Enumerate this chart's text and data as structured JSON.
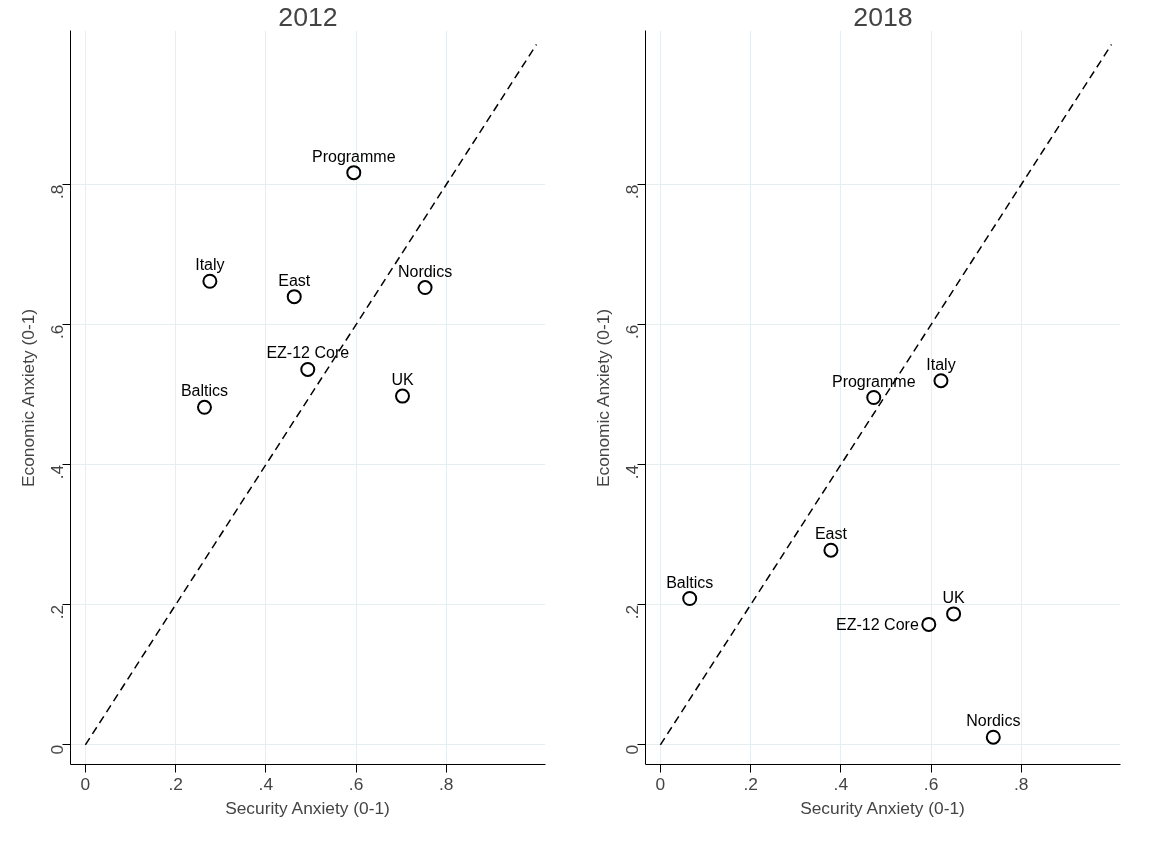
{
  "chart_data": [
    {
      "type": "scatter",
      "title": "2012",
      "xlabel": "Security Anxiety (0-1)",
      "ylabel": "Economic Anxiety (0-1)",
      "xlim": [
        -0.033,
        1.02
      ],
      "ylim": [
        -0.028,
        1.02
      ],
      "xticks": [
        0,
        {
          "value": 0.2,
          "label": ".2"
        },
        {
          "value": 0.4,
          "label": ".4"
        },
        {
          "value": 0.6,
          "label": ".6"
        },
        {
          "value": 0.8,
          "label": ".8"
        }
      ],
      "yticks": [
        0,
        {
          "value": 0.2,
          "label": ".2"
        },
        {
          "value": 0.4,
          "label": ".4"
        },
        {
          "value": 0.6,
          "label": ".6"
        },
        {
          "value": 0.8,
          "label": ".8"
        }
      ],
      "grid": true,
      "marker": "circle",
      "series": [
        {
          "name": "Programme",
          "color": "#000000",
          "x": [
            0.595
          ],
          "values": [
            0.817
          ]
        },
        {
          "name": "Italy",
          "color": "#000000",
          "x": [
            0.276
          ],
          "values": [
            0.662
          ]
        },
        {
          "name": "East",
          "color": "#000000",
          "x": [
            0.463
          ],
          "values": [
            0.64
          ]
        },
        {
          "name": "Nordics",
          "color": "#000000",
          "x": [
            0.753
          ],
          "values": [
            0.653
          ]
        },
        {
          "name": "EZ-12 Core",
          "color": "#000000",
          "x": [
            0.493
          ],
          "values": [
            0.536
          ]
        },
        {
          "name": "UK",
          "color": "#000000",
          "x": [
            0.703
          ],
          "values": [
            0.498
          ]
        },
        {
          "name": "Baltics",
          "color": "#000000",
          "x": [
            0.264
          ],
          "values": [
            0.482
          ]
        },
        {
          "type": "line",
          "color": "#000000",
          "line_style": "dashed",
          "marker": "none",
          "x": [
            0,
            1
          ],
          "values": [
            0,
            1
          ]
        }
      ]
    },
    {
      "type": "scatter",
      "title": "2018",
      "xlabel": "Security Anxiety (0-1)",
      "ylabel": "Economic Anxiety (0-1)",
      "xlim": [
        -0.033,
        1.02
      ],
      "ylim": [
        -0.028,
        1.02
      ],
      "xticks": [
        0,
        {
          "value": 0.2,
          "label": ".2"
        },
        {
          "value": 0.4,
          "label": ".4"
        },
        {
          "value": 0.6,
          "label": ".6"
        },
        {
          "value": 0.8,
          "label": ".8"
        }
      ],
      "yticks": [
        0,
        {
          "value": 0.2,
          "label": ".2"
        },
        {
          "value": 0.4,
          "label": ".4"
        },
        {
          "value": 0.6,
          "label": ".6"
        },
        {
          "value": 0.8,
          "label": ".8"
        }
      ],
      "grid": true,
      "marker": "circle",
      "series": [
        {
          "name": "Programme",
          "color": "#000000",
          "x": [
            0.473
          ],
          "values": [
            0.496
          ]
        },
        {
          "name": "Italy",
          "color": "#000000",
          "x": [
            0.622
          ],
          "values": [
            0.52
          ]
        },
        {
          "name": "East",
          "color": "#000000",
          "x": [
            0.378
          ],
          "values": [
            0.278
          ]
        },
        {
          "name": "Baltics",
          "color": "#000000",
          "x": [
            0.065
          ],
          "values": [
            0.209
          ]
        },
        {
          "name": "EZ-12 Core",
          "color": "#000000",
          "x": [
            0.595
          ],
          "values": [
            0.172
          ]
        },
        {
          "name": "UK",
          "color": "#000000",
          "x": [
            0.65
          ],
          "values": [
            0.187
          ]
        },
        {
          "name": "Nordics",
          "color": "#000000",
          "x": [
            0.738
          ],
          "values": [
            0.011
          ]
        },
        {
          "type": "line",
          "color": "#000000",
          "line_style": "dashed",
          "marker": "none",
          "x": [
            0,
            1
          ],
          "values": [
            0,
            1
          ]
        }
      ]
    }
  ]
}
